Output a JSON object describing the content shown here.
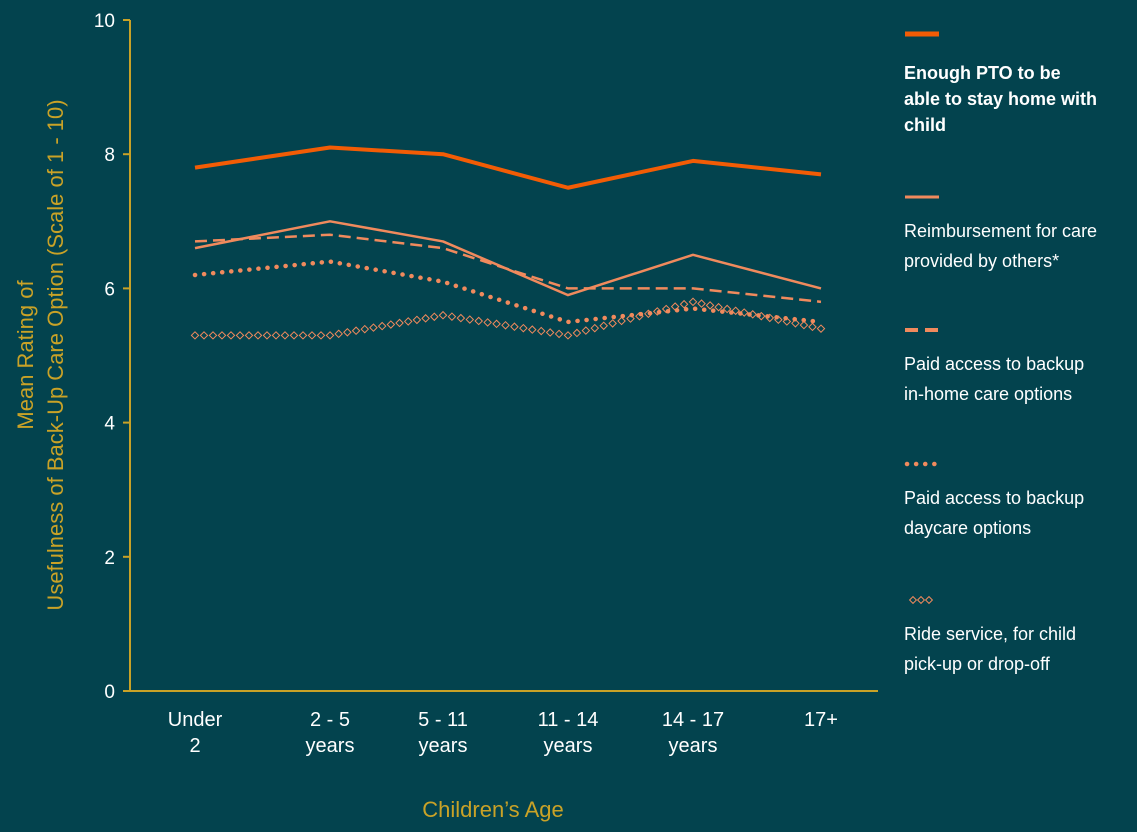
{
  "chart_data": {
    "type": "line",
    "categories": [
      [
        "Under",
        "2"
      ],
      [
        "2 - 5",
        "years"
      ],
      [
        "5 - 11",
        "years"
      ],
      [
        "11 - 14",
        "years"
      ],
      [
        "14 - 17",
        "years"
      ],
      [
        "17+"
      ]
    ],
    "xlabel": "Children’s Age",
    "ylabel": [
      "Mean Rating of",
      "Usefulness of  Back-Up Care Option (Scale of 1 - 10)"
    ],
    "ylim": [
      0,
      10
    ],
    "yticks": [
      "0",
      "2",
      "4",
      "6",
      "8",
      "10"
    ],
    "legend_position": "right",
    "grid": false,
    "series": [
      {
        "name": [
          "Enough PTO to be",
          "able to stay home with",
          "child"
        ],
        "style": "solid-thick",
        "color": "#F25C05",
        "values": [
          7.8,
          8.1,
          8.0,
          7.5,
          7.9,
          7.7
        ]
      },
      {
        "name": [
          "Reimbursement for care",
          "provided by others*"
        ],
        "style": "solid",
        "color": "#F08A5D",
        "values": [
          6.6,
          7.0,
          6.7,
          5.9,
          6.5,
          6.0
        ]
      },
      {
        "name": [
          "Paid access to backup",
          "in-home care options"
        ],
        "style": "dashed",
        "color": "#F08A5D",
        "values": [
          6.7,
          6.8,
          6.6,
          6.0,
          6.0,
          5.8
        ]
      },
      {
        "name": [
          "Paid access to backup",
          "daycare options"
        ],
        "style": "dotted",
        "color": "#F08A5D",
        "values": [
          6.2,
          6.4,
          6.1,
          5.5,
          5.7,
          5.5
        ]
      },
      {
        "name": [
          "Ride service, for child",
          "pick-up or drop-off"
        ],
        "style": "diamonds",
        "color": "#F08A5D",
        "values": [
          5.3,
          5.3,
          5.6,
          5.3,
          5.8,
          5.4
        ]
      }
    ]
  },
  "colors": {
    "background": "#03434E",
    "axis": "#C9A227",
    "axis_title": "#C9A227",
    "tick_text": "#FFFFFF"
  }
}
